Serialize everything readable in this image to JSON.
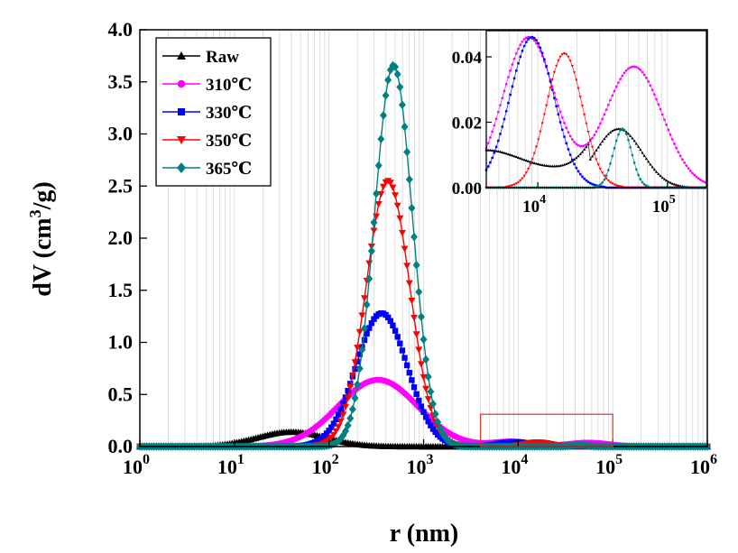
{
  "chart_data": {
    "type": "line",
    "xscale": "log",
    "xlim": [
      1,
      1000000
    ],
    "ylim": [
      0,
      4.0
    ],
    "xlabel": "r (nm)",
    "ylabel": "dV (cm3/g)",
    "ylabel_main": "dV (cm",
    "ylabel_sup": "3",
    "ylabel_end": "/g)",
    "yticks": [
      "0.0",
      "0.5",
      "1.0",
      "1.5",
      "2.0",
      "2.5",
      "3.0",
      "3.5",
      "4.0"
    ],
    "yticks_values": [
      0,
      0.5,
      1.0,
      1.5,
      2.0,
      2.5,
      3.0,
      3.5,
      4.0
    ],
    "xticks": [
      {
        "value": 1,
        "base": "10",
        "exp": "0"
      },
      {
        "value": 10,
        "base": "10",
        "exp": "1"
      },
      {
        "value": 100,
        "base": "10",
        "exp": "2"
      },
      {
        "value": 1000,
        "base": "10",
        "exp": "3"
      },
      {
        "value": 10000,
        "base": "10",
        "exp": "4"
      },
      {
        "value": 100000,
        "base": "10",
        "exp": "5"
      },
      {
        "value": 1000000,
        "base": "10",
        "exp": "6"
      }
    ],
    "series": [
      {
        "name": "Raw",
        "color": "#000000",
        "marker": "triangle-up",
        "peaks": [
          {
            "amp": 0.14,
            "center": 40,
            "sigma": 0.36
          },
          {
            "amp": 0.018,
            "center": 42000,
            "sigma": 0.18
          }
        ],
        "cut": [
          4,
          150
        ]
      },
      {
        "name": "310℃",
        "color": "#ff00ff",
        "marker": "circle",
        "peaks": [
          {
            "amp": 0.64,
            "center": 330,
            "sigma": 0.42
          },
          {
            "amp": 0.046,
            "center": 8500,
            "sigma": 0.2
          },
          {
            "amp": 0.037,
            "center": 55000,
            "sigma": 0.22
          }
        ],
        "cut": [
          12,
          1600
        ]
      },
      {
        "name": "330℃",
        "color": "#0000ff",
        "marker": "square",
        "peaks": [
          {
            "amp": 1.28,
            "center": 360,
            "sigma": 0.27
          },
          {
            "amp": 0.046,
            "center": 9000,
            "sigma": 0.17
          }
        ],
        "cut": [
          40,
          1300
        ]
      },
      {
        "name": "350℃",
        "color": "#ff0000",
        "marker": "triangle-down",
        "peaks": [
          {
            "amp": 2.55,
            "center": 420,
            "sigma": 0.23
          },
          {
            "amp": 0.041,
            "center": 16000,
            "sigma": 0.14
          }
        ],
        "cut": [
          65,
          1350
        ]
      },
      {
        "name": "365℃",
        "color": "#008080",
        "marker": "diamond",
        "peaks": [
          {
            "amp": 3.66,
            "center": 480,
            "sigma": 0.2
          },
          {
            "amp": 0.018,
            "center": 45000,
            "sigma": 0.07
          }
        ],
        "cut": [
          110,
          1500
        ]
      }
    ],
    "zoom_box": {
      "x_range": [
        4000,
        100000
      ],
      "y_range": [
        0,
        0.31
      ]
    },
    "inset": {
      "xscale": "log",
      "xlim": [
        4000,
        200000
      ],
      "ylim": [
        0,
        0.048
      ],
      "yticks": [
        "0.00",
        "0.02",
        "0.04"
      ],
      "yticks_values": [
        0,
        0.02,
        0.04
      ],
      "xticks": [
        {
          "value": 10000,
          "base": "10",
          "exp": "4"
        },
        {
          "value": 100000,
          "base": "10",
          "exp": "5"
        }
      ]
    }
  }
}
